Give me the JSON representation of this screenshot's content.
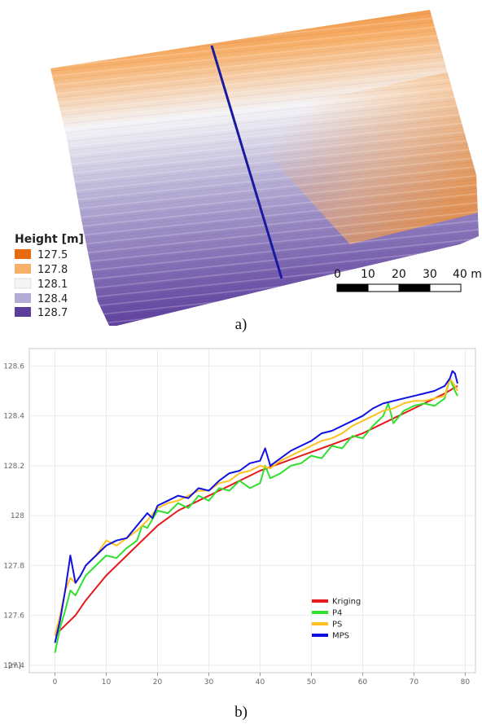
{
  "panel_a": {
    "caption": "a)",
    "legend": {
      "title": "Height [m]",
      "items": [
        {
          "label": "127.5",
          "color": "#e8690f"
        },
        {
          "label": "127.8",
          "color": "#f7b06a"
        },
        {
          "label": "128.1",
          "color": "#f4f3f6"
        },
        {
          "label": "128.4",
          "color": "#b4acd4"
        },
        {
          "label": "128.7",
          "color": "#5c3d9c"
        }
      ]
    },
    "profile_line_color": "#1a1aa0",
    "scale_bar": {
      "labels": [
        "0",
        "10",
        "20",
        "30",
        "40 m"
      ]
    }
  },
  "panel_b": {
    "caption": "b)",
    "chart_data": {
      "type": "line",
      "xlabel": "",
      "ylabel": "[m]",
      "xlim": [
        -5,
        82
      ],
      "ylim": [
        127.37,
        128.67
      ],
      "xticks": [
        "0",
        "10",
        "20",
        "30",
        "40",
        "50",
        "60",
        "70",
        "80"
      ],
      "yticks": [
        "127.4",
        "127.6",
        "127.8",
        "128",
        "128.2",
        "128.4",
        "128.6"
      ],
      "grid": true,
      "legend_position": "center-right",
      "series": [
        {
          "name": "Kriging",
          "color": "#e41a1c",
          "x": [
            0,
            2,
            4,
            6,
            8,
            10,
            12,
            14,
            16,
            18,
            20,
            24,
            28,
            32,
            36,
            40,
            44,
            48,
            52,
            56,
            60,
            64,
            68,
            72,
            76,
            78.5
          ],
          "y": [
            127.52,
            127.56,
            127.6,
            127.66,
            127.71,
            127.76,
            127.8,
            127.84,
            127.88,
            127.92,
            127.96,
            128.02,
            128.06,
            128.1,
            128.14,
            128.18,
            128.21,
            128.24,
            128.27,
            128.3,
            128.33,
            128.37,
            128.41,
            128.45,
            128.49,
            128.52
          ]
        },
        {
          "name": "P4",
          "color": "#2fe02f",
          "x": [
            0,
            1,
            2,
            3,
            4,
            5,
            6,
            8,
            10,
            12,
            14,
            16,
            17,
            18,
            20,
            22,
            24,
            26,
            28,
            30,
            32,
            34,
            36,
            38,
            40,
            41,
            42,
            44,
            46,
            48,
            50,
            52,
            54,
            56,
            58,
            60,
            62,
            64,
            65,
            66,
            68,
            70,
            72,
            74,
            76,
            77,
            78,
            78.5
          ],
          "y": [
            127.45,
            127.55,
            127.62,
            127.7,
            127.68,
            127.72,
            127.76,
            127.8,
            127.84,
            127.83,
            127.87,
            127.9,
            127.96,
            127.95,
            128.02,
            128.01,
            128.05,
            128.03,
            128.08,
            128.06,
            128.11,
            128.1,
            128.14,
            128.11,
            128.13,
            128.2,
            128.15,
            128.17,
            128.2,
            128.21,
            128.24,
            128.23,
            128.28,
            128.27,
            128.32,
            128.31,
            128.36,
            128.4,
            128.45,
            128.37,
            128.42,
            128.44,
            128.45,
            128.44,
            128.47,
            128.55,
            128.5,
            128.48
          ]
        },
        {
          "name": "PS",
          "color": "#ffc020",
          "x": [
            0,
            1,
            2,
            3,
            4,
            5,
            6,
            8,
            10,
            12,
            14,
            16,
            18,
            20,
            22,
            24,
            26,
            28,
            30,
            32,
            34,
            36,
            38,
            40,
            42,
            44,
            46,
            48,
            50,
            52,
            54,
            56,
            58,
            60,
            62,
            64,
            66,
            68,
            70,
            72,
            74,
            76,
            77,
            78,
            78.5
          ],
          "y": [
            127.52,
            127.6,
            127.7,
            127.75,
            127.73,
            127.76,
            127.8,
            127.84,
            127.9,
            127.88,
            127.91,
            127.94,
            127.98,
            128.03,
            128.05,
            128.06,
            128.08,
            128.1,
            128.1,
            128.13,
            128.14,
            128.17,
            128.18,
            128.2,
            128.19,
            128.22,
            128.24,
            128.26,
            128.28,
            128.3,
            128.31,
            128.33,
            128.36,
            128.38,
            128.4,
            128.42,
            128.43,
            128.45,
            128.46,
            128.46,
            128.47,
            128.48,
            128.55,
            128.52,
            128.5
          ]
        },
        {
          "name": "MPS",
          "color": "#1010e0",
          "x": [
            0,
            1,
            2,
            3,
            4,
            5,
            6,
            8,
            10,
            12,
            14,
            16,
            18,
            19,
            20,
            22,
            24,
            26,
            28,
            30,
            32,
            34,
            36,
            38,
            40,
            41,
            42,
            44,
            46,
            48,
            50,
            52,
            54,
            56,
            58,
            60,
            62,
            64,
            66,
            68,
            70,
            72,
            74,
            76,
            77,
            77.5,
            78,
            78.5
          ],
          "y": [
            127.49,
            127.58,
            127.7,
            127.84,
            127.73,
            127.76,
            127.8,
            127.84,
            127.88,
            127.9,
            127.91,
            127.96,
            128.01,
            127.99,
            128.04,
            128.06,
            128.08,
            128.07,
            128.11,
            128.1,
            128.14,
            128.17,
            128.18,
            128.21,
            128.22,
            128.27,
            128.2,
            128.23,
            128.26,
            128.28,
            128.3,
            128.33,
            128.34,
            128.36,
            128.38,
            128.4,
            128.43,
            128.45,
            128.46,
            128.47,
            128.48,
            128.49,
            128.5,
            128.52,
            128.55,
            128.58,
            128.57,
            128.53
          ]
        }
      ]
    }
  }
}
